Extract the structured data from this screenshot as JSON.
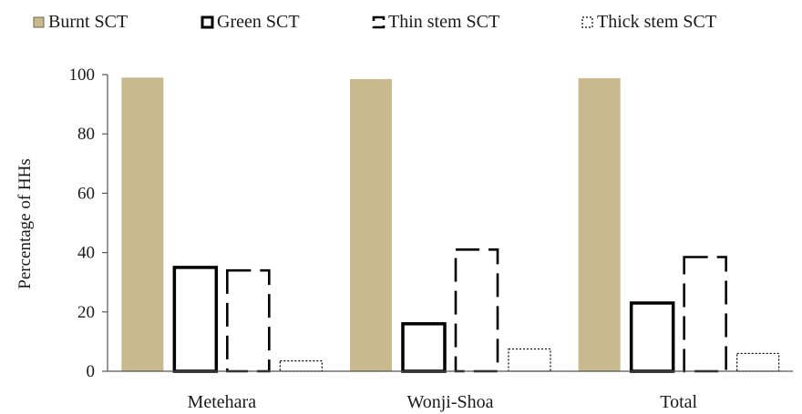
{
  "chart_data": {
    "type": "bar",
    "ylabel": "Percentage of HHs",
    "ylim": [
      0,
      100
    ],
    "yticks": [
      0,
      20,
      40,
      60,
      80,
      100
    ],
    "grid": false,
    "legend_position": "top",
    "categories": [
      "Metehara",
      "Wonji-Shoa",
      "Total"
    ],
    "series": [
      {
        "name": "Burnt SCT",
        "values": [
          99,
          98.5,
          98.8
        ],
        "style": "solid-fill",
        "color": "#c8b98e"
      },
      {
        "name": "Green SCT",
        "values": [
          35,
          16,
          23
        ],
        "style": "thick-outline",
        "color": "#000000"
      },
      {
        "name": "Thin stem SCT",
        "values": [
          34,
          41,
          38.5
        ],
        "style": "dashed-outline",
        "color": "#000000"
      },
      {
        "name": "Thick stem SCT",
        "values": [
          3.5,
          7.5,
          6
        ],
        "style": "dotted-outline",
        "color": "#000000"
      }
    ]
  }
}
